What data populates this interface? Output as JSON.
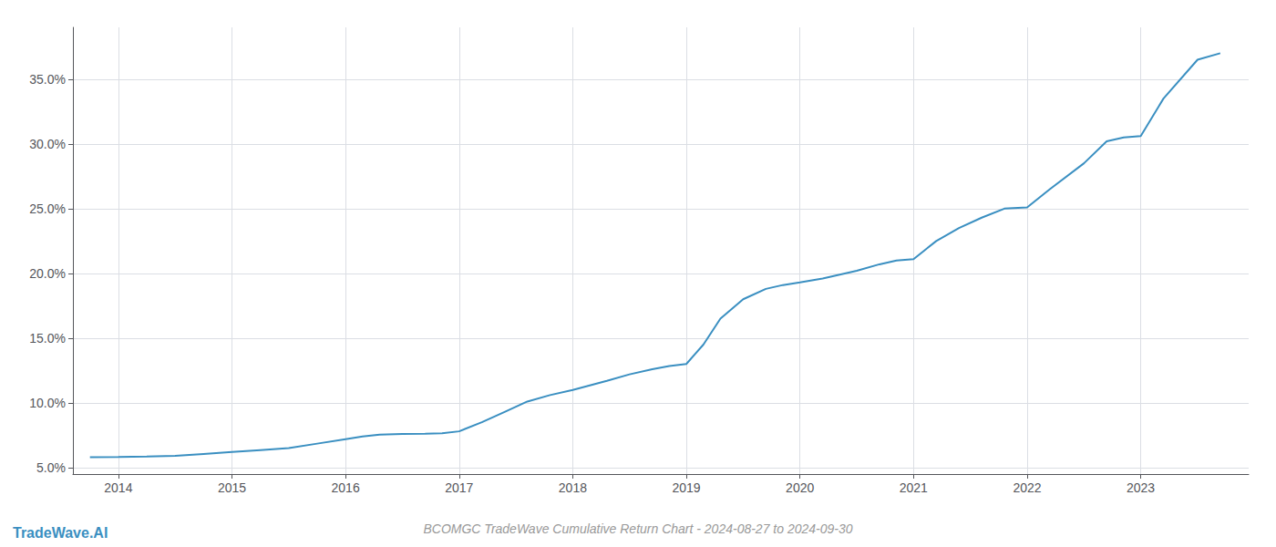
{
  "chart_data": {
    "type": "line",
    "title": "BCOMGC TradeWave Cumulative Return Chart - 2024-08-27 to 2024-09-30",
    "annotations": [
      "TradeWave.AI"
    ],
    "color": "#3a8fc1",
    "x": [
      2013.75,
      2014.0,
      2014.25,
      2014.5,
      2014.75,
      2015.0,
      2015.25,
      2015.5,
      2015.75,
      2016.0,
      2016.15,
      2016.3,
      2016.5,
      2016.7,
      2016.85,
      2017.0,
      2017.2,
      2017.4,
      2017.6,
      2017.8,
      2018.0,
      2018.15,
      2018.3,
      2018.5,
      2018.7,
      2018.85,
      2019.0,
      2019.15,
      2019.3,
      2019.5,
      2019.7,
      2019.85,
      2020.0,
      2020.2,
      2020.5,
      2020.7,
      2020.85,
      2021.0,
      2021.2,
      2021.4,
      2021.6,
      2021.8,
      2022.0,
      2022.2,
      2022.5,
      2022.7,
      2022.85,
      2023.0,
      2023.2,
      2023.5,
      2023.7
    ],
    "values": [
      5.8,
      5.82,
      5.85,
      5.9,
      6.05,
      6.2,
      6.35,
      6.5,
      6.85,
      7.2,
      7.4,
      7.55,
      7.6,
      7.62,
      7.65,
      7.8,
      8.5,
      9.3,
      10.1,
      10.6,
      11.0,
      11.35,
      11.7,
      12.2,
      12.6,
      12.85,
      13.0,
      14.5,
      16.5,
      18.0,
      18.8,
      19.1,
      19.3,
      19.6,
      20.2,
      20.7,
      21.0,
      21.1,
      22.5,
      23.5,
      24.3,
      25.0,
      25.1,
      26.5,
      28.5,
      30.2,
      30.5,
      30.6,
      33.5,
      36.5,
      37.0
    ],
    "xlim": [
      2013.6,
      2023.95
    ],
    "xticks": [
      2014,
      2015,
      2016,
      2017,
      2018,
      2019,
      2020,
      2021,
      2022,
      2023
    ],
    "ylim": [
      4.5,
      39.0
    ],
    "yticks": [
      {
        "value": 5.0,
        "label": "5.0%"
      },
      {
        "value": 10.0,
        "label": "10.0%"
      },
      {
        "value": 15.0,
        "label": "15.0%"
      },
      {
        "value": 20.0,
        "label": "20.0%"
      },
      {
        "value": 25.0,
        "label": "25.0%"
      },
      {
        "value": 30.0,
        "label": "30.0%"
      },
      {
        "value": 35.0,
        "label": "35.0%"
      }
    ],
    "grid": true
  }
}
